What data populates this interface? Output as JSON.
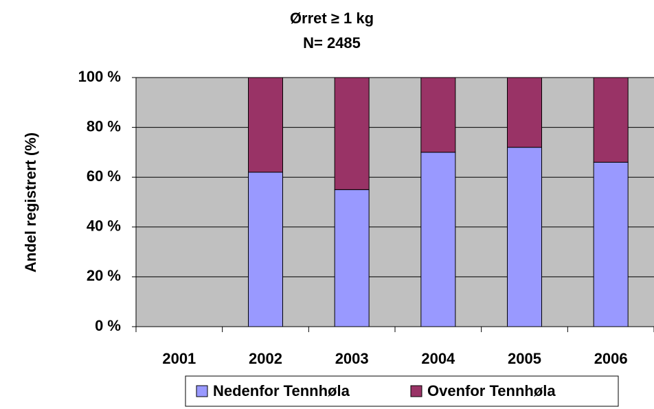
{
  "chart_data": {
    "type": "stacked_bar",
    "title": "Ørret ≥ 1 kg",
    "subtitle": "N= 2485",
    "y_label": "Andel registrert (%)",
    "categories": [
      "2001",
      "2002",
      "2003",
      "2004",
      "2005",
      "2006"
    ],
    "series": [
      {
        "name": "Nedenfor Tennhøla",
        "color": "#9999ff",
        "values": [
          null,
          62,
          55,
          70,
          72,
          66
        ]
      },
      {
        "name": "Ovenfor Tennhøla",
        "color": "#993366",
        "values": [
          null,
          38,
          45,
          30,
          28,
          34
        ]
      }
    ],
    "ylim": [
      0,
      100
    ],
    "yticks": [
      {
        "value": 0,
        "label": "0 %"
      },
      {
        "value": 20,
        "label": "20 %"
      },
      {
        "value": 40,
        "label": "40 %"
      },
      {
        "value": 60,
        "label": "60 %"
      },
      {
        "value": 80,
        "label": "80 %"
      },
      {
        "value": 100,
        "label": "100 %"
      }
    ],
    "grid": true,
    "legend": "bottom"
  }
}
